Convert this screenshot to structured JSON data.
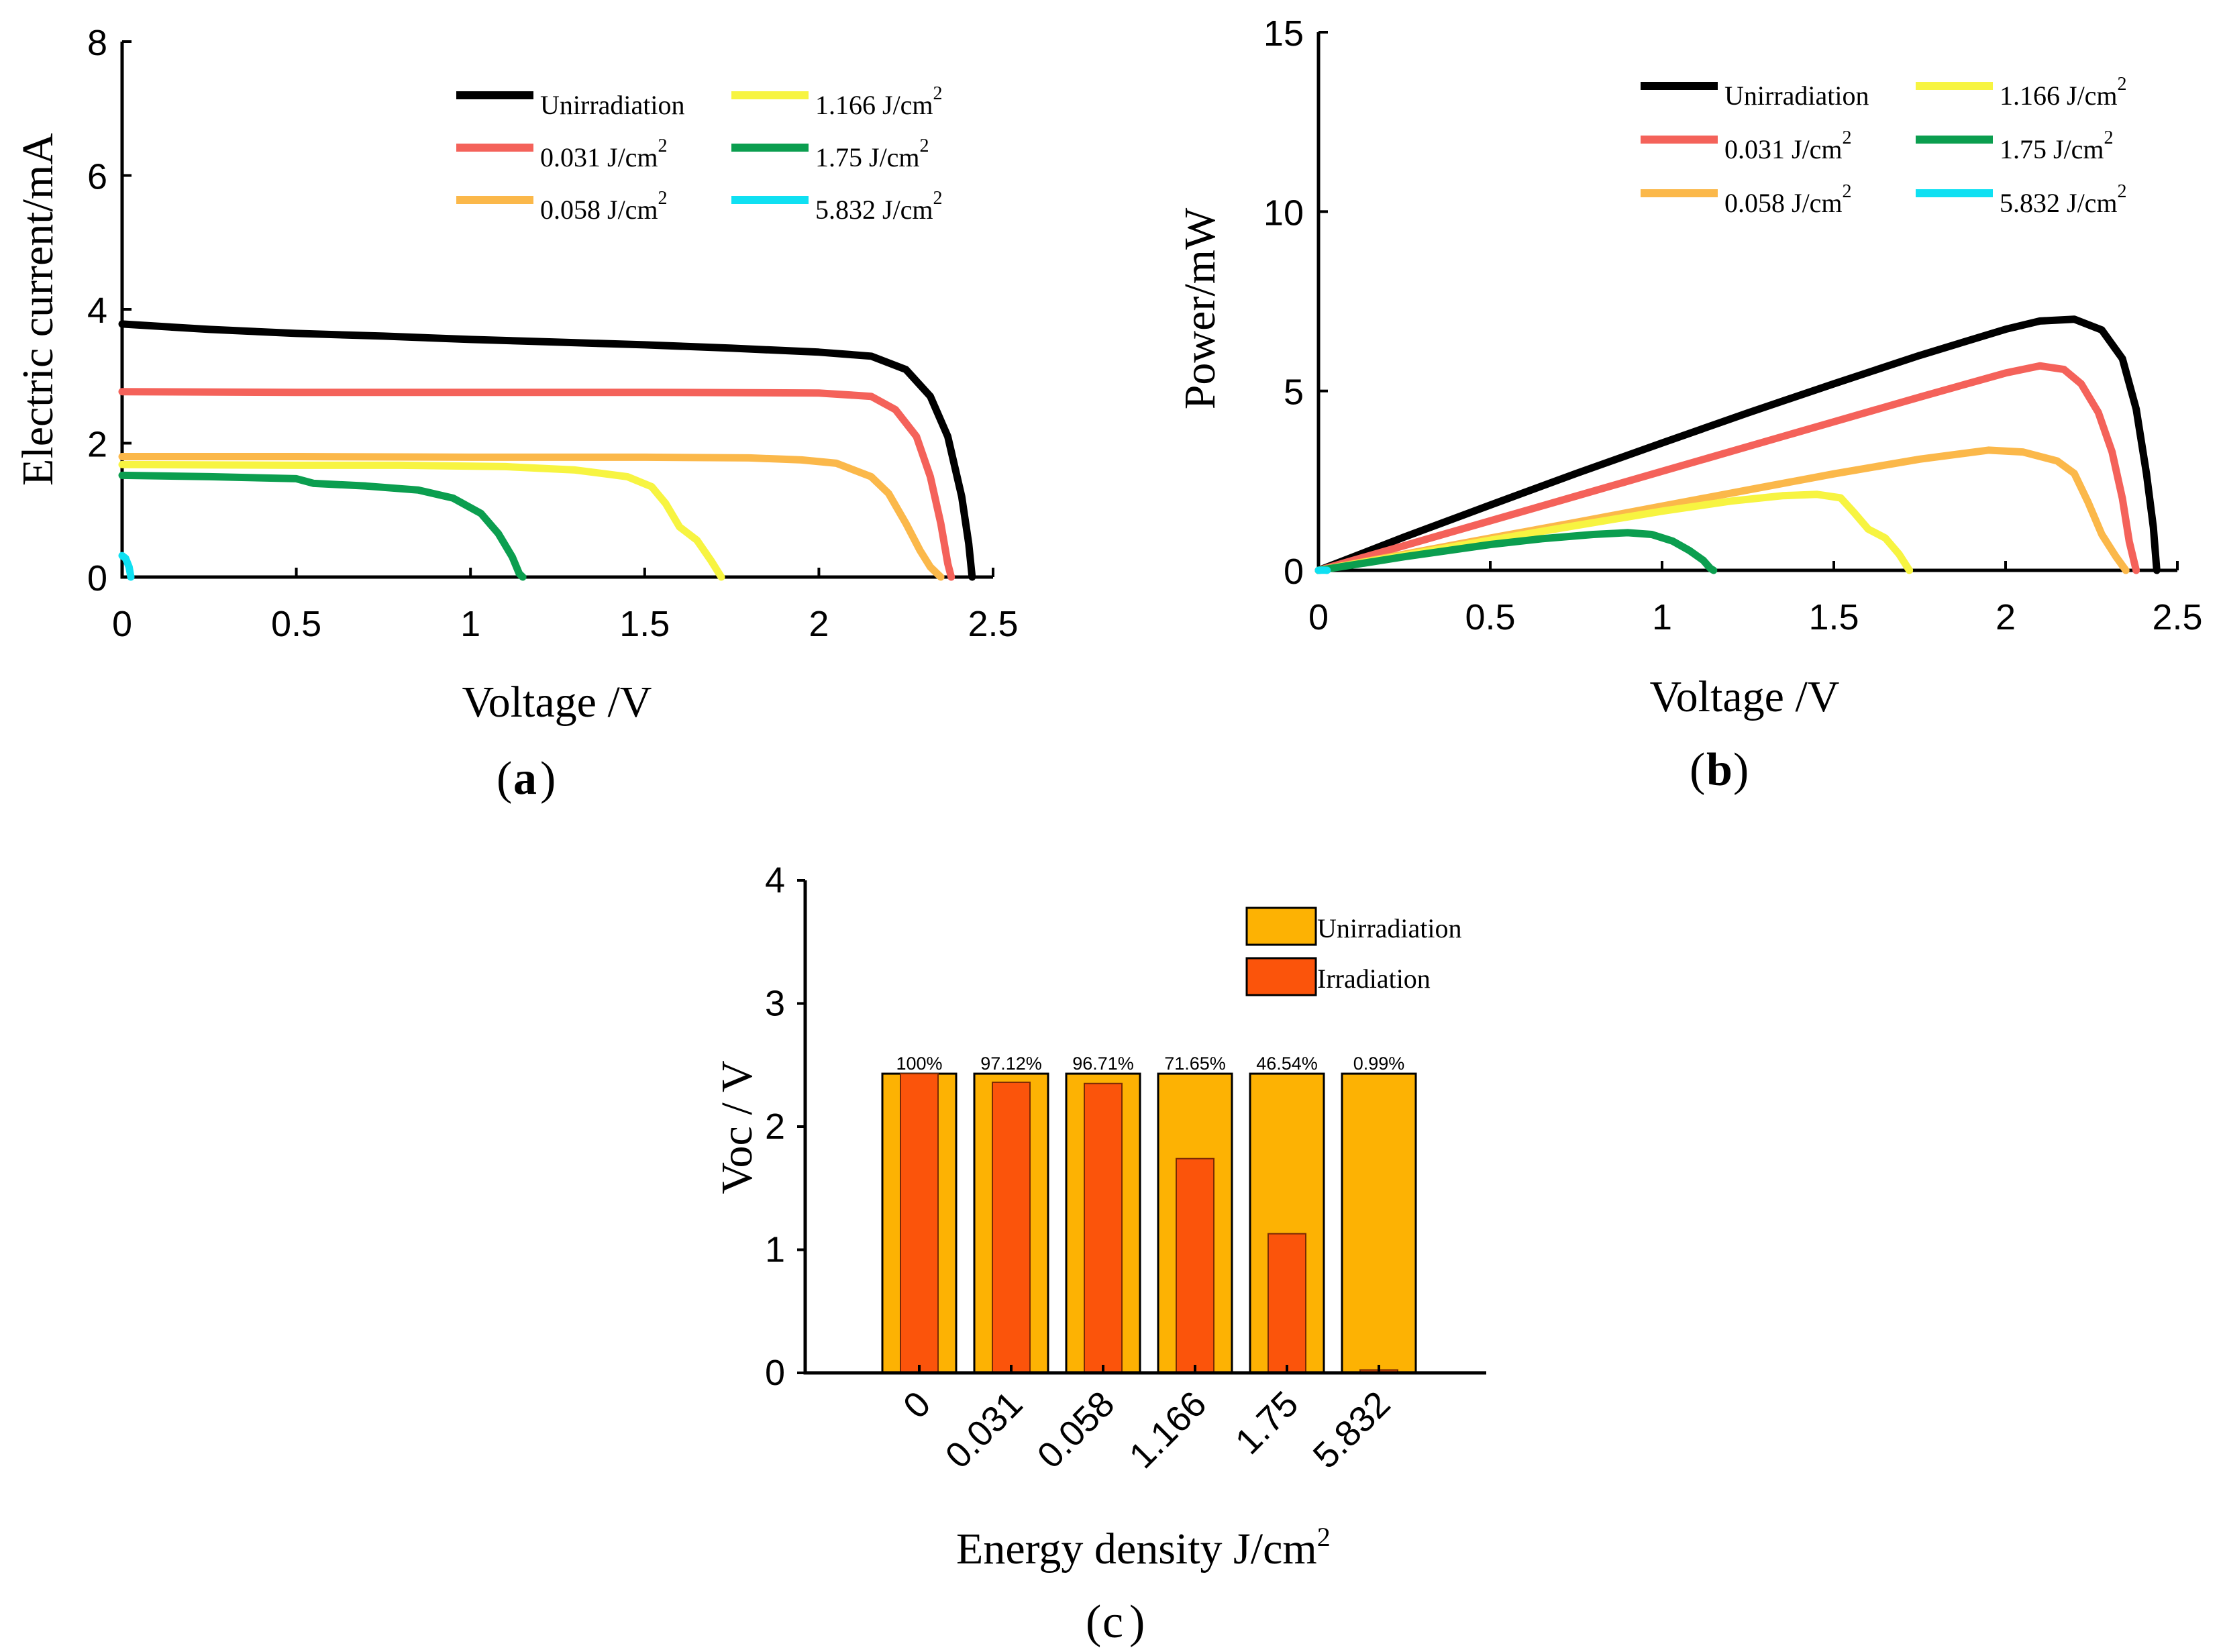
{
  "chart_data": [
    {
      "id": "a",
      "type": "line",
      "caption": "a",
      "xlabel": "Voltage /V",
      "ylabel": "Electric current/mA",
      "xlim": [
        0,
        2.5
      ],
      "ylim": [
        0,
        8
      ],
      "xticks": [
        "0",
        "0.5",
        "1",
        "1.5",
        "2",
        "2.5"
      ],
      "yticks": [
        "0",
        "2",
        "4",
        "6",
        "8"
      ],
      "legend_position": "top-right",
      "series": [
        {
          "name": "Unirradiation",
          "color": "#000000",
          "points": [
            [
              0,
              3.78
            ],
            [
              0.25,
              3.7
            ],
            [
              0.5,
              3.64
            ],
            [
              0.75,
              3.6
            ],
            [
              1.0,
              3.55
            ],
            [
              1.25,
              3.51
            ],
            [
              1.5,
              3.47
            ],
            [
              1.75,
              3.42
            ],
            [
              2.0,
              3.36
            ],
            [
              2.15,
              3.3
            ],
            [
              2.25,
              3.1
            ],
            [
              2.32,
              2.7
            ],
            [
              2.37,
              2.1
            ],
            [
              2.41,
              1.2
            ],
            [
              2.43,
              0.5
            ],
            [
              2.44,
              0
            ]
          ]
        },
        {
          "name": "0.031 J/cm2",
          "color": "#f4625a",
          "points": [
            [
              0,
              2.77
            ],
            [
              0.5,
              2.76
            ],
            [
              1.0,
              2.76
            ],
            [
              1.5,
              2.76
            ],
            [
              2.0,
              2.75
            ],
            [
              2.15,
              2.7
            ],
            [
              2.22,
              2.5
            ],
            [
              2.28,
              2.1
            ],
            [
              2.32,
              1.5
            ],
            [
              2.35,
              0.8
            ],
            [
              2.37,
              0.2
            ],
            [
              2.38,
              0
            ]
          ]
        },
        {
          "name": "0.058 J/cm2",
          "color": "#fbb84a",
          "points": [
            [
              0,
              1.8
            ],
            [
              0.5,
              1.8
            ],
            [
              1.0,
              1.79
            ],
            [
              1.5,
              1.79
            ],
            [
              1.8,
              1.78
            ],
            [
              1.95,
              1.75
            ],
            [
              2.05,
              1.7
            ],
            [
              2.15,
              1.5
            ],
            [
              2.2,
              1.25
            ],
            [
              2.25,
              0.8
            ],
            [
              2.29,
              0.4
            ],
            [
              2.32,
              0.15
            ],
            [
              2.35,
              0
            ]
          ]
        },
        {
          "name": "1.166 J/cm2",
          "color": "#f7f441",
          "points": [
            [
              0,
              1.68
            ],
            [
              0.5,
              1.67
            ],
            [
              0.8,
              1.67
            ],
            [
              1.1,
              1.65
            ],
            [
              1.3,
              1.6
            ],
            [
              1.45,
              1.5
            ],
            [
              1.52,
              1.35
            ],
            [
              1.56,
              1.1
            ],
            [
              1.6,
              0.75
            ],
            [
              1.65,
              0.55
            ],
            [
              1.69,
              0.25
            ],
            [
              1.72,
              0
            ]
          ]
        },
        {
          "name": "1.75 J/cm2",
          "color": "#0b9e4f",
          "points": [
            [
              0,
              1.52
            ],
            [
              0.25,
              1.5
            ],
            [
              0.5,
              1.47
            ],
            [
              0.55,
              1.4
            ],
            [
              0.7,
              1.36
            ],
            [
              0.85,
              1.3
            ],
            [
              0.95,
              1.18
            ],
            [
              1.03,
              0.95
            ],
            [
              1.08,
              0.65
            ],
            [
              1.12,
              0.3
            ],
            [
              1.14,
              0.05
            ],
            [
              1.15,
              0
            ]
          ]
        },
        {
          "name": "5.832 J/cm2",
          "color": "#0fe0f2",
          "points": [
            [
              0,
              0.32
            ],
            [
              0.01,
              0.28
            ],
            [
              0.02,
              0.15
            ],
            [
              0.025,
              0
            ]
          ]
        }
      ]
    },
    {
      "id": "b",
      "type": "line",
      "caption": "b",
      "xlabel": "Voltage /V",
      "ylabel": "Power/mW",
      "xlim": [
        0,
        2.5
      ],
      "ylim": [
        0,
        15
      ],
      "xticks": [
        "0",
        "0.5",
        "1",
        "1.5",
        "2",
        "2.5"
      ],
      "yticks": [
        "0",
        "5",
        "10",
        "15"
      ],
      "legend_position": "top-right",
      "series": [
        {
          "name": "Unirradiation",
          "color": "#000000",
          "points": [
            [
              0,
              0
            ],
            [
              0.25,
              0.93
            ],
            [
              0.5,
              1.82
            ],
            [
              0.75,
              2.7
            ],
            [
              1.0,
              3.55
            ],
            [
              1.25,
              4.39
            ],
            [
              1.5,
              5.2
            ],
            [
              1.75,
              5.99
            ],
            [
              2.0,
              6.72
            ],
            [
              2.1,
              6.95
            ],
            [
              2.2,
              7.0
            ],
            [
              2.28,
              6.7
            ],
            [
              2.34,
              5.9
            ],
            [
              2.38,
              4.5
            ],
            [
              2.41,
              2.7
            ],
            [
              2.43,
              1.2
            ],
            [
              2.44,
              0
            ]
          ]
        },
        {
          "name": "0.031 J/cm2",
          "color": "#f4625a",
          "points": [
            [
              0,
              0
            ],
            [
              0.25,
              0.69
            ],
            [
              0.5,
              1.38
            ],
            [
              0.75,
              2.07
            ],
            [
              1.0,
              2.76
            ],
            [
              1.25,
              3.45
            ],
            [
              1.5,
              4.14
            ],
            [
              1.75,
              4.83
            ],
            [
              2.0,
              5.5
            ],
            [
              2.1,
              5.7
            ],
            [
              2.17,
              5.6
            ],
            [
              2.22,
              5.2
            ],
            [
              2.27,
              4.4
            ],
            [
              2.31,
              3.3
            ],
            [
              2.34,
              2.0
            ],
            [
              2.36,
              0.8
            ],
            [
              2.38,
              0
            ]
          ]
        },
        {
          "name": "0.058 J/cm2",
          "color": "#fbb84a",
          "points": [
            [
              0,
              0
            ],
            [
              0.25,
              0.45
            ],
            [
              0.5,
              0.9
            ],
            [
              0.75,
              1.34
            ],
            [
              1.0,
              1.79
            ],
            [
              1.25,
              2.24
            ],
            [
              1.5,
              2.69
            ],
            [
              1.75,
              3.1
            ],
            [
              1.95,
              3.35
            ],
            [
              2.05,
              3.3
            ],
            [
              2.15,
              3.05
            ],
            [
              2.2,
              2.7
            ],
            [
              2.24,
              1.9
            ],
            [
              2.28,
              1.0
            ],
            [
              2.32,
              0.4
            ],
            [
              2.35,
              0
            ]
          ]
        },
        {
          "name": "1.166 J/cm2",
          "color": "#f7f441",
          "points": [
            [
              0,
              0
            ],
            [
              0.25,
              0.42
            ],
            [
              0.5,
              0.84
            ],
            [
              0.75,
              1.25
            ],
            [
              1.0,
              1.65
            ],
            [
              1.2,
              1.93
            ],
            [
              1.35,
              2.08
            ],
            [
              1.45,
              2.12
            ],
            [
              1.52,
              2.02
            ],
            [
              1.56,
              1.6
            ],
            [
              1.6,
              1.15
            ],
            [
              1.65,
              0.9
            ],
            [
              1.69,
              0.45
            ],
            [
              1.72,
              0
            ]
          ]
        },
        {
          "name": "1.75 J/cm2",
          "color": "#0b9e4f",
          "points": [
            [
              0,
              0
            ],
            [
              0.25,
              0.38
            ],
            [
              0.5,
              0.72
            ],
            [
              0.65,
              0.88
            ],
            [
              0.8,
              1.0
            ],
            [
              0.9,
              1.05
            ],
            [
              0.97,
              1.0
            ],
            [
              1.03,
              0.82
            ],
            [
              1.08,
              0.55
            ],
            [
              1.12,
              0.28
            ],
            [
              1.14,
              0.06
            ],
            [
              1.15,
              0
            ]
          ]
        },
        {
          "name": "5.832 J/cm2",
          "color": "#0fe0f2",
          "points": [
            [
              0,
              0
            ],
            [
              0.01,
              0.003
            ],
            [
              0.02,
              0.003
            ],
            [
              0.025,
              0
            ]
          ]
        }
      ]
    },
    {
      "id": "c",
      "type": "bar",
      "caption": "c",
      "xlabel": "Energy density J/cm",
      "xlabel_sup": "2",
      "ylabel": "Voc / V",
      "ylim": [
        0,
        4
      ],
      "yticks": [
        "0",
        "1",
        "2",
        "3",
        "4"
      ],
      "categories": [
        "0",
        "0.031",
        "0.058",
        "1.166",
        "1.75",
        "5.832"
      ],
      "legend_position": "top-right",
      "series": [
        {
          "name": "Unirradiation",
          "color": "#fdb203",
          "values": [
            2.43,
            2.43,
            2.43,
            2.43,
            2.43,
            2.43
          ]
        },
        {
          "name": "Irradiation",
          "color": "#fb540b",
          "values": [
            2.43,
            2.36,
            2.35,
            1.74,
            1.13,
            0.024
          ]
        }
      ],
      "data_labels": [
        "100%",
        "97.12%",
        "96.71%",
        "71.65%",
        "46.54%",
        "0.99%"
      ]
    }
  ],
  "legend_sup": "2"
}
